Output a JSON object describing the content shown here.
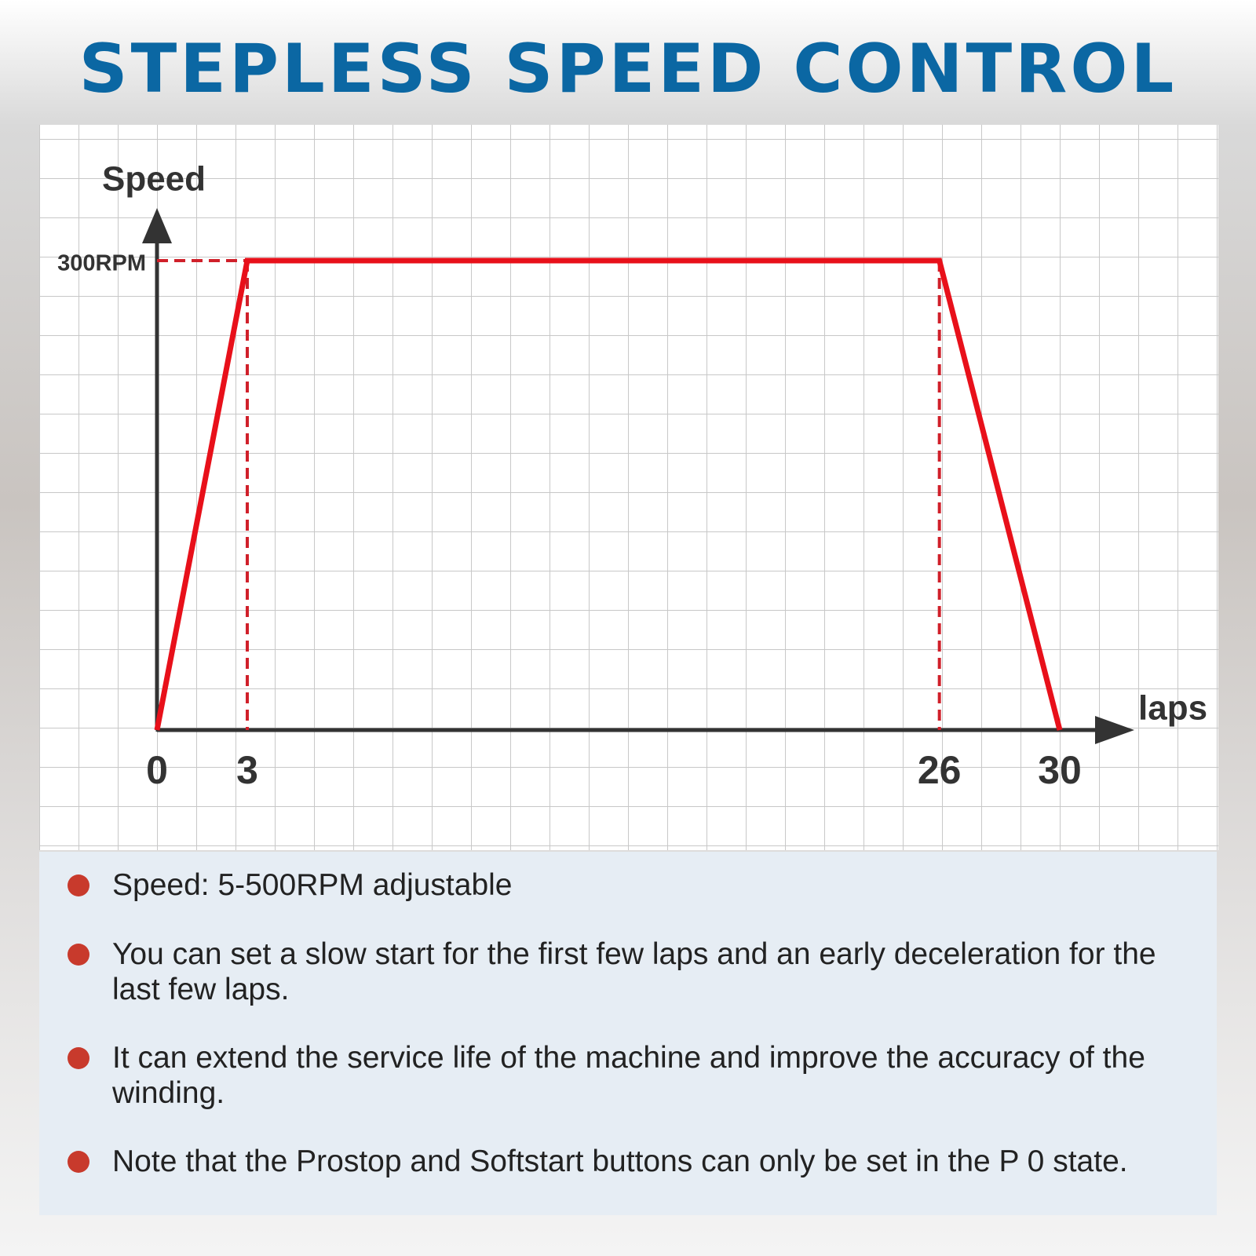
{
  "header": {
    "title": "STEPLESS SPEED CONTROL"
  },
  "chart_data": {
    "type": "line",
    "x_label": "laps",
    "y_label": "Speed",
    "x": [
      0,
      3,
      26,
      30
    ],
    "series": [
      {
        "name": "Speed",
        "color": "#e8101a",
        "values": [
          0,
          300,
          300,
          0
        ]
      }
    ],
    "xlim": [
      0,
      30
    ],
    "xticks": [
      0,
      3,
      26,
      30
    ],
    "ylim": [
      0,
      300
    ],
    "yticks": [
      {
        "value": 300,
        "label": "300RPM"
      }
    ],
    "guide_color": "#d0202a"
  },
  "bullets": [
    "Speed: 5-500RPM adjustable",
    "You can set a slow start for the first few laps and an early deceleration for the last few laps.",
    "It can extend the service life of the machine and improve the accuracy of the winding.",
    "Note that the Prostop and Softstart buttons can only be set in the P 0 state."
  ]
}
